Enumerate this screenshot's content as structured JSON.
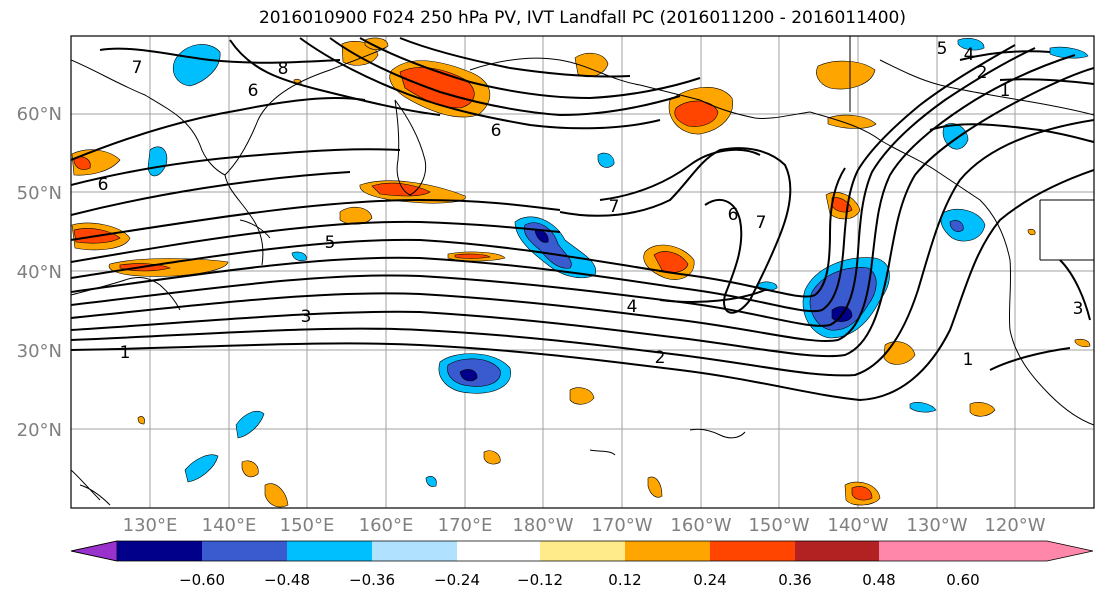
{
  "title": "2016010900 F024 250 hPa PV, IVT Landfall PC (2016011200 - 2016011400)",
  "map": {
    "lat_labels": [
      "60°N",
      "50°N",
      "40°N",
      "30°N",
      "20°N"
    ],
    "lon_labels": [
      "130°E",
      "140°E",
      "150°E",
      "160°E",
      "170°E",
      "180°W",
      "170°W",
      "160°W",
      "150°W",
      "140°W",
      "130°W",
      "120°W"
    ],
    "label_color": "#808080",
    "contour_labels": [
      "1",
      "1",
      "1",
      "2",
      "2",
      "3",
      "3",
      "4",
      "4",
      "5",
      "5",
      "6",
      "6",
      "6",
      "6",
      "7",
      "7",
      "7",
      "8"
    ]
  },
  "colorbar": {
    "colors": [
      "#9932cc",
      "#00008b",
      "#3a5bcf",
      "#00bfff",
      "#b0e2ff",
      "#ffffff",
      "#ffeb8a",
      "#ffa500",
      "#ff4500",
      "#b22222",
      "#ff88aa"
    ],
    "ticks": [
      "−0.60",
      "−0.48",
      "−0.36",
      "−0.24",
      "−0.12",
      "0.12",
      "0.24",
      "0.36",
      "0.48",
      "0.60"
    ]
  }
}
